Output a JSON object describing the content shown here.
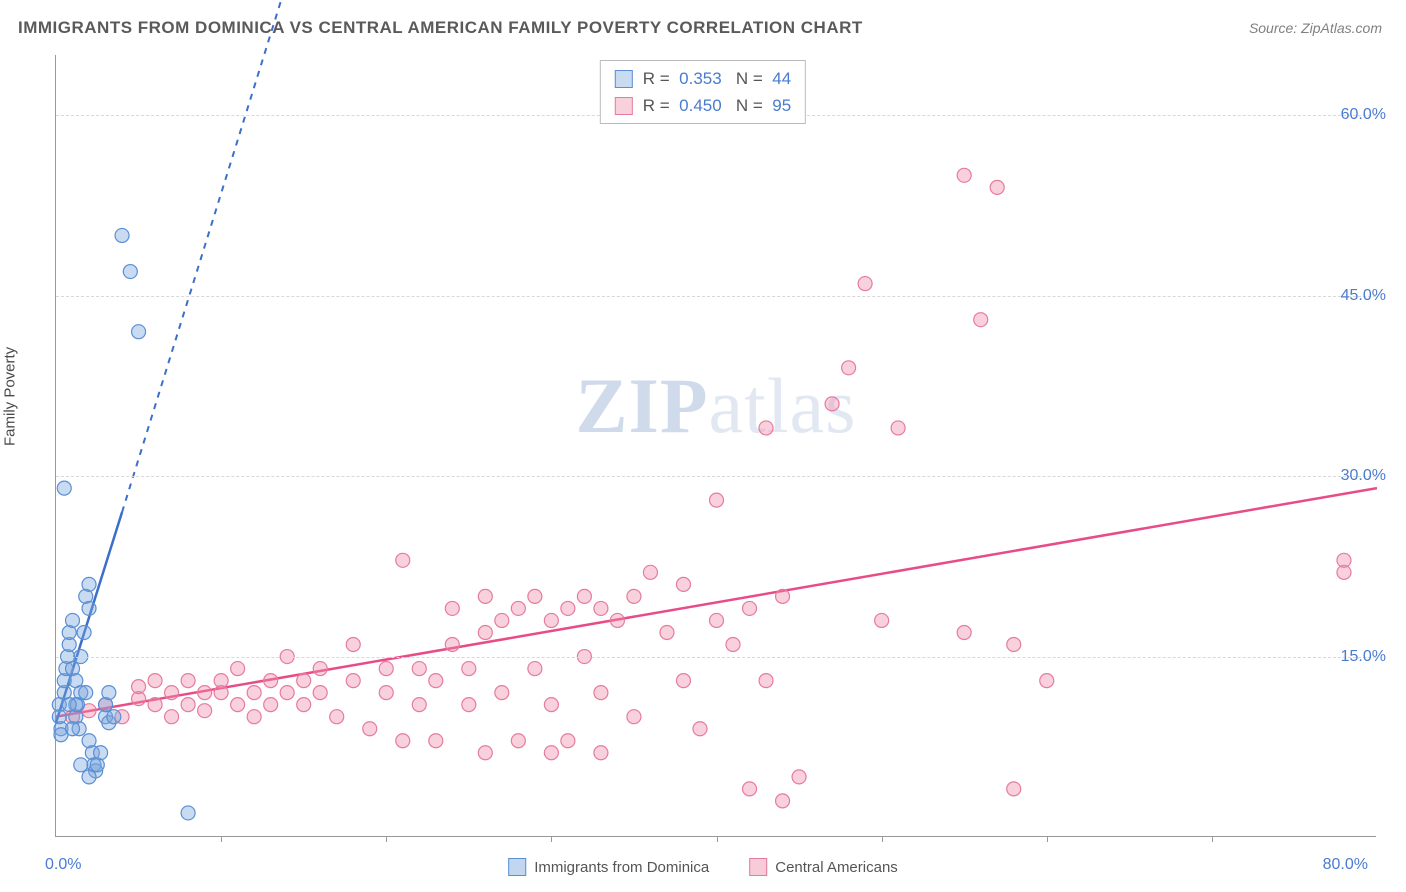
{
  "title": "IMMIGRANTS FROM DOMINICA VS CENTRAL AMERICAN FAMILY POVERTY CORRELATION CHART",
  "source_label": "Source: ZipAtlas.com",
  "ylabel": "Family Poverty",
  "watermark_bold": "ZIP",
  "watermark_rest": "atlas",
  "chart": {
    "type": "scatter",
    "xlim": [
      0,
      80
    ],
    "ylim": [
      0,
      65
    ],
    "xlim_labels": [
      "0.0%",
      "80.0%"
    ],
    "yticks": [
      15,
      30,
      45,
      60
    ],
    "ytick_labels": [
      "15.0%",
      "30.0%",
      "45.0%",
      "60.0%"
    ],
    "xticks": [
      10,
      20,
      30,
      40,
      50,
      60,
      70
    ],
    "background_color": "#ffffff",
    "grid_color": "#d8d8d8",
    "axis_color": "#999999",
    "marker_radius": 7,
    "series": [
      {
        "name": "Immigrants from Dominica",
        "marker_fill": "rgba(120,165,220,0.40)",
        "marker_stroke": "#5a8fd6",
        "trend_color": "#3b6fc9",
        "trend_solid": [
          [
            0,
            9.5
          ],
          [
            4,
            27
          ]
        ],
        "trend_dashed": [
          [
            4,
            27
          ],
          [
            16,
            80
          ]
        ],
        "R": "0.353",
        "N": "44",
        "points": [
          [
            0.2,
            11
          ],
          [
            0.2,
            10
          ],
          [
            0.3,
            9
          ],
          [
            0.3,
            8.5
          ],
          [
            0.5,
            12
          ],
          [
            0.5,
            13
          ],
          [
            0.6,
            14
          ],
          [
            0.7,
            15
          ],
          [
            0.8,
            16
          ],
          [
            0.8,
            17
          ],
          [
            1.0,
            18
          ],
          [
            1.0,
            14
          ],
          [
            1.2,
            13
          ],
          [
            1.2,
            10
          ],
          [
            1.3,
            11
          ],
          [
            1.4,
            9
          ],
          [
            1.5,
            12
          ],
          [
            1.5,
            15
          ],
          [
            1.7,
            17
          ],
          [
            1.8,
            20
          ],
          [
            2.0,
            19
          ],
          [
            2.0,
            21
          ],
          [
            2.0,
            8
          ],
          [
            2.2,
            7
          ],
          [
            2.3,
            6
          ],
          [
            2.4,
            5.5
          ],
          [
            2.5,
            6
          ],
          [
            2.7,
            7
          ],
          [
            3.0,
            10
          ],
          [
            3.0,
            11
          ],
          [
            3.2,
            12
          ],
          [
            3.2,
            9.5
          ],
          [
            3.5,
            10
          ],
          [
            0.5,
            29
          ],
          [
            1.0,
            9
          ],
          [
            1.2,
            11
          ],
          [
            4.0,
            50
          ],
          [
            4.5,
            47
          ],
          [
            5.0,
            42
          ],
          [
            8.0,
            2
          ],
          [
            1.5,
            6
          ],
          [
            2.0,
            5
          ],
          [
            1.8,
            12
          ],
          [
            0.8,
            11
          ]
        ]
      },
      {
        "name": "Central Americans",
        "marker_fill": "rgba(240,140,170,0.40)",
        "marker_stroke": "#e67ba0",
        "trend_color": "#e84c88",
        "trend_solid": [
          [
            0,
            10
          ],
          [
            80,
            29
          ]
        ],
        "trend_dashed": null,
        "R": "0.450",
        "N": "95",
        "points": [
          [
            1,
            10
          ],
          [
            2,
            10.5
          ],
          [
            3,
            11
          ],
          [
            4,
            10
          ],
          [
            5,
            11.5
          ],
          [
            5,
            12.5
          ],
          [
            6,
            11
          ],
          [
            6,
            13
          ],
          [
            7,
            12
          ],
          [
            7,
            10
          ],
          [
            8,
            11
          ],
          [
            8,
            13
          ],
          [
            9,
            12
          ],
          [
            9,
            10.5
          ],
          [
            10,
            13
          ],
          [
            10,
            12
          ],
          [
            11,
            11
          ],
          [
            11,
            14
          ],
          [
            12,
            12
          ],
          [
            12,
            10
          ],
          [
            13,
            13
          ],
          [
            13,
            11
          ],
          [
            14,
            12
          ],
          [
            14,
            15
          ],
          [
            15,
            13
          ],
          [
            15,
            11
          ],
          [
            16,
            12
          ],
          [
            16,
            14
          ],
          [
            17,
            10
          ],
          [
            18,
            16
          ],
          [
            18,
            13
          ],
          [
            19,
            9
          ],
          [
            20,
            14
          ],
          [
            20,
            12
          ],
          [
            21,
            8
          ],
          [
            21,
            23
          ],
          [
            22,
            14
          ],
          [
            22,
            11
          ],
          [
            23,
            13
          ],
          [
            23,
            8
          ],
          [
            24,
            16
          ],
          [
            24,
            19
          ],
          [
            25,
            14
          ],
          [
            25,
            11
          ],
          [
            26,
            17
          ],
          [
            26,
            20
          ],
          [
            27,
            12
          ],
          [
            27,
            18
          ],
          [
            28,
            8
          ],
          [
            28,
            19
          ],
          [
            29,
            20
          ],
          [
            29,
            14
          ],
          [
            30,
            18
          ],
          [
            30,
            11
          ],
          [
            31,
            19
          ],
          [
            31,
            8
          ],
          [
            32,
            20
          ],
          [
            32,
            15
          ],
          [
            33,
            19
          ],
          [
            33,
            12
          ],
          [
            34,
            18
          ],
          [
            35,
            20
          ],
          [
            35,
            10
          ],
          [
            36,
            22
          ],
          [
            37,
            17
          ],
          [
            38,
            21
          ],
          [
            38,
            13
          ],
          [
            39,
            9
          ],
          [
            40,
            18
          ],
          [
            40,
            28
          ],
          [
            41,
            16
          ],
          [
            42,
            19
          ],
          [
            42,
            4
          ],
          [
            43,
            34
          ],
          [
            44,
            20
          ],
          [
            44,
            3
          ],
          [
            45,
            5
          ],
          [
            47,
            36
          ],
          [
            48,
            39
          ],
          [
            49,
            46
          ],
          [
            50,
            18
          ],
          [
            51,
            34
          ],
          [
            55,
            17
          ],
          [
            56,
            43
          ],
          [
            57,
            54
          ],
          [
            58,
            16
          ],
          [
            60,
            13
          ],
          [
            55,
            55
          ],
          [
            58,
            4
          ],
          [
            78,
            22
          ],
          [
            78,
            23
          ],
          [
            30,
            7
          ],
          [
            33,
            7
          ],
          [
            26,
            7
          ],
          [
            43,
            13
          ]
        ]
      }
    ]
  },
  "legend_bottom": [
    {
      "label": "Immigrants from Dominica",
      "fill": "rgba(120,165,220,0.45)",
      "border": "#5a8fd6"
    },
    {
      "label": "Central Americans",
      "fill": "rgba(240,140,170,0.45)",
      "border": "#e67ba0"
    }
  ]
}
